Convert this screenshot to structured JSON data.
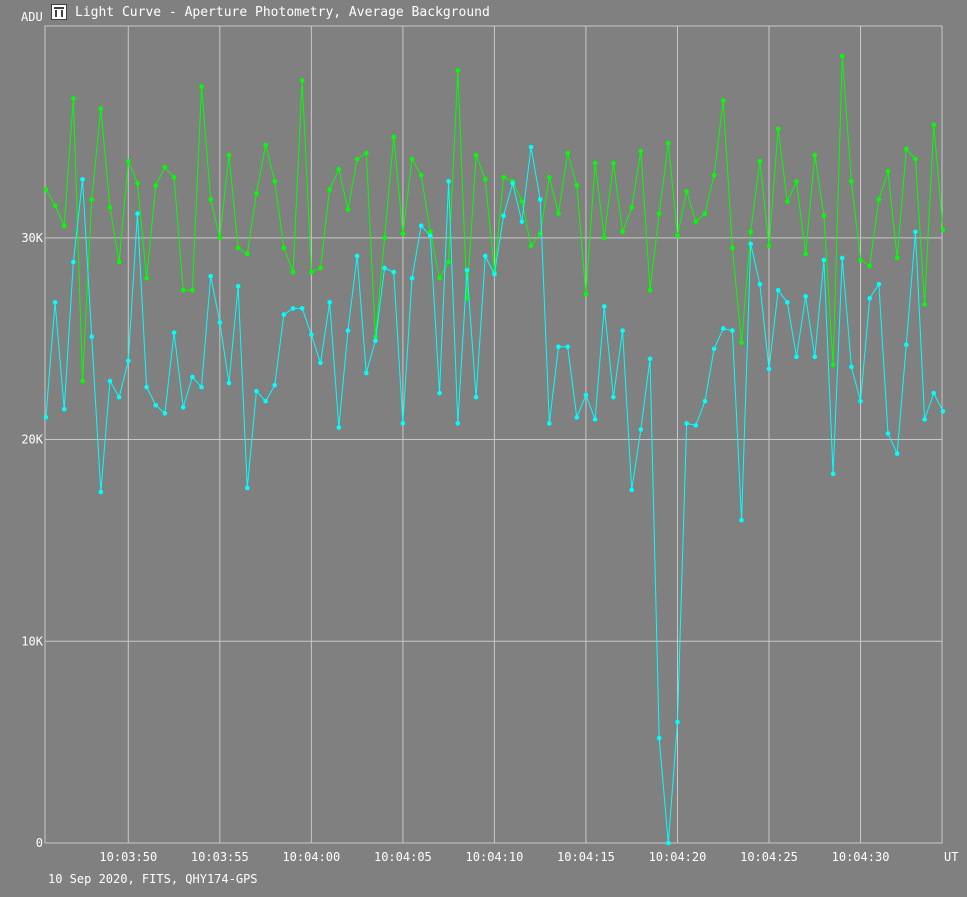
{
  "window": {
    "title": "Light Curve - Aperture Photometry, Average Background",
    "icon": "light-curve-app-icon"
  },
  "footer": {
    "text": "10 Sep 2020, FITS, QHY174-GPS"
  },
  "colors": {
    "background": "#808080",
    "grid": "#c8c8c8",
    "text": "#ffffff",
    "series_green": "#00ff00",
    "series_cyan": "#00ffff"
  },
  "chart_data": {
    "type": "line",
    "title": "Light Curve - Aperture Photometry, Average Background",
    "xlabel": "UT",
    "ylabel": "ADU",
    "ylim": [
      0,
      40500
    ],
    "xlim": [
      -4.55,
      44.45
    ],
    "x_unit": "seconds after 10:03:50 UT",
    "x_ticks": [
      {
        "x": 0,
        "label": "10:03:50"
      },
      {
        "x": 5,
        "label": "10:03:55"
      },
      {
        "x": 10,
        "label": "10:04:00"
      },
      {
        "x": 15,
        "label": "10:04:05"
      },
      {
        "x": 20,
        "label": "10:04:10"
      },
      {
        "x": 25,
        "label": "10:04:15"
      },
      {
        "x": 30,
        "label": "10:04:20"
      },
      {
        "x": 35,
        "label": "10:04:25"
      },
      {
        "x": 40,
        "label": "10:04:30"
      }
    ],
    "y_ticks": [
      {
        "y": 0,
        "label": "0"
      },
      {
        "y": 10000,
        "label": "10K"
      },
      {
        "y": 20000,
        "label": "20K"
      },
      {
        "y": 30000,
        "label": "30K"
      }
    ],
    "grid": true,
    "x_start": -4.5,
    "x_step": 0.5,
    "series": [
      {
        "color": "#00ff00",
        "values": [
          32400,
          31600,
          30600,
          36900,
          22900,
          31900,
          36400,
          31500,
          28800,
          33800,
          32700,
          28000,
          32600,
          33500,
          33000,
          27400,
          27400,
          37500,
          31900,
          30000,
          34100,
          29500,
          29200,
          32200,
          34600,
          32800,
          29500,
          28300,
          37800,
          28300,
          28500,
          32400,
          33400,
          31400,
          33900,
          34200,
          25100,
          30000,
          35000,
          30200,
          33900,
          33100,
          30300,
          28000,
          28800,
          38300,
          27000,
          34100,
          32900,
          28300,
          33000,
          32800,
          31800,
          29600,
          30200,
          33000,
          31200,
          34200,
          32600,
          27200,
          33700,
          30000,
          33700,
          30300,
          31500,
          34300,
          27400,
          31200,
          34700,
          30100,
          32300,
          30800,
          31200,
          33100,
          36800,
          29500,
          24800,
          30300,
          33800,
          29600,
          35400,
          31800,
          32800,
          29200,
          34100,
          31100,
          23700,
          39000,
          32800,
          28900,
          28600,
          31900,
          33300,
          29000,
          34400,
          33900,
          26700,
          35600,
          30400
        ]
      },
      {
        "color": "#00ffff",
        "values": [
          21100,
          26800,
          21500,
          28800,
          32900,
          25100,
          17400,
          22900,
          22100,
          23900,
          31200,
          22600,
          21700,
          21300,
          25300,
          21600,
          23100,
          22600,
          28100,
          25800,
          22800,
          27600,
          17600,
          22400,
          21900,
          22700,
          26200,
          26500,
          26500,
          25200,
          23800,
          26800,
          20600,
          25400,
          29100,
          23300,
          24900,
          28500,
          28300,
          20800,
          28000,
          30600,
          30100,
          22300,
          32800,
          20800,
          28400,
          22100,
          29100,
          28200,
          31100,
          32700,
          30800,
          34500,
          31900,
          20800,
          24600,
          24600,
          21100,
          22200,
          21000,
          26600,
          22100,
          25400,
          17500,
          20500,
          24000,
          5200,
          0,
          6000,
          20800,
          20700,
          21900,
          24500,
          25500,
          25400,
          16000,
          29700,
          27700,
          23500,
          27400,
          26800,
          24100,
          27100,
          24100,
          28900,
          18300,
          29000,
          23600,
          21900,
          27000,
          27700,
          20300,
          19300,
          24700,
          30300,
          21000,
          22300,
          21400
        ]
      }
    ]
  }
}
